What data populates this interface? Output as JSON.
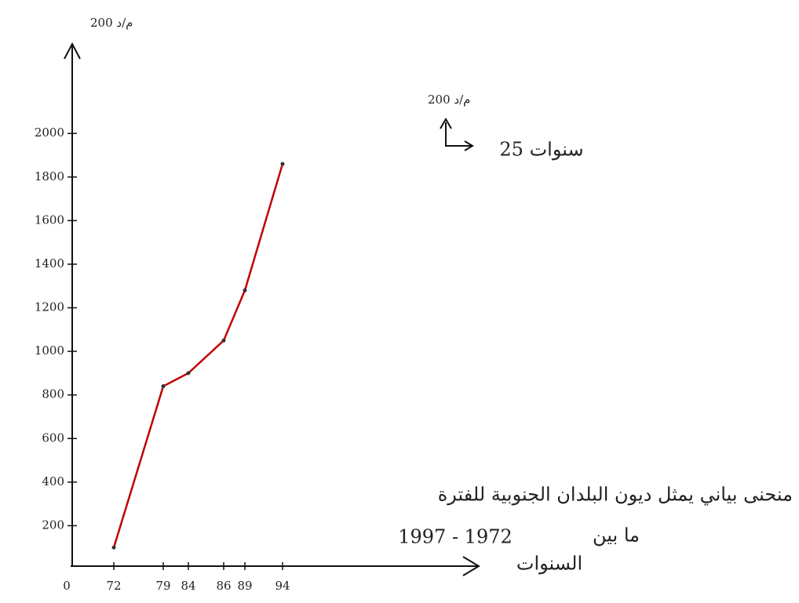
{
  "chart_data": {
    "type": "line",
    "y_label": "200 م/د",
    "x_label": "السنوات",
    "origin": "0",
    "annotation_unit": "200 م/د",
    "annotation_scale": "25 سنوات",
    "title": "منحنى بياني يمثل ديون البلدان الجنوبية للفترة",
    "subtitle_prefix": "ما بين",
    "subtitle_range": "1997 - 1972",
    "categories": [
      "72",
      "79",
      "84",
      "86",
      "89",
      "94"
    ],
    "values": [
      100,
      840,
      900,
      1050,
      1280,
      1860
    ],
    "color": "#c00000",
    "ylim": [
      0,
      2400
    ],
    "yticks": [
      200,
      400,
      600,
      800,
      1000,
      1200,
      1400,
      1600,
      1800,
      2000
    ]
  }
}
